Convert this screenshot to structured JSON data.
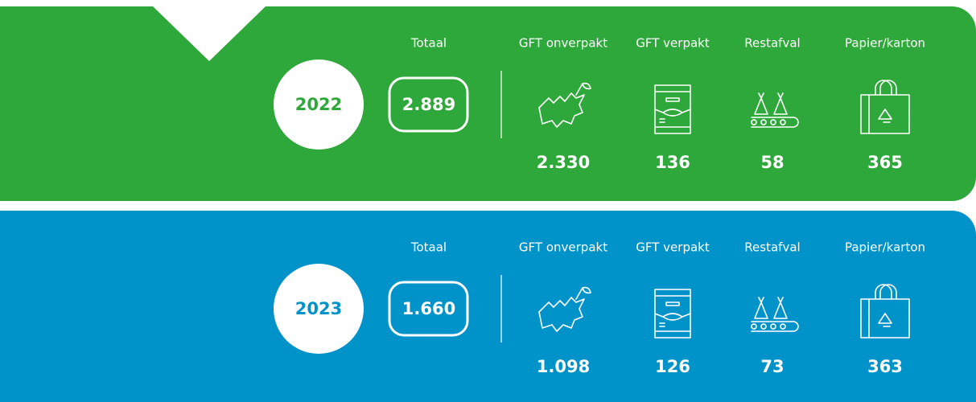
{
  "rows": [
    {
      "year": "2022",
      "total_label": "Totaal",
      "total": "2.889",
      "color": "#2ea83a",
      "items": [
        {
          "label": "GFT onverpakt",
          "value": "2.330"
        },
        {
          "label": "GFT verpakt",
          "value": "136"
        },
        {
          "label": "Restafval",
          "value": "58"
        },
        {
          "label": "Papier/karton",
          "value": "365"
        }
      ]
    },
    {
      "year": "2023",
      "total_label": "Totaal",
      "total": "1.660",
      "color": "#0093c9",
      "items": [
        {
          "label": "GFT onverpakt",
          "value": "1.098"
        },
        {
          "label": "GFT verpakt",
          "value": "126"
        },
        {
          "label": "Restafval",
          "value": "73"
        },
        {
          "label": "Papier/karton",
          "value": "363"
        }
      ]
    }
  ]
}
